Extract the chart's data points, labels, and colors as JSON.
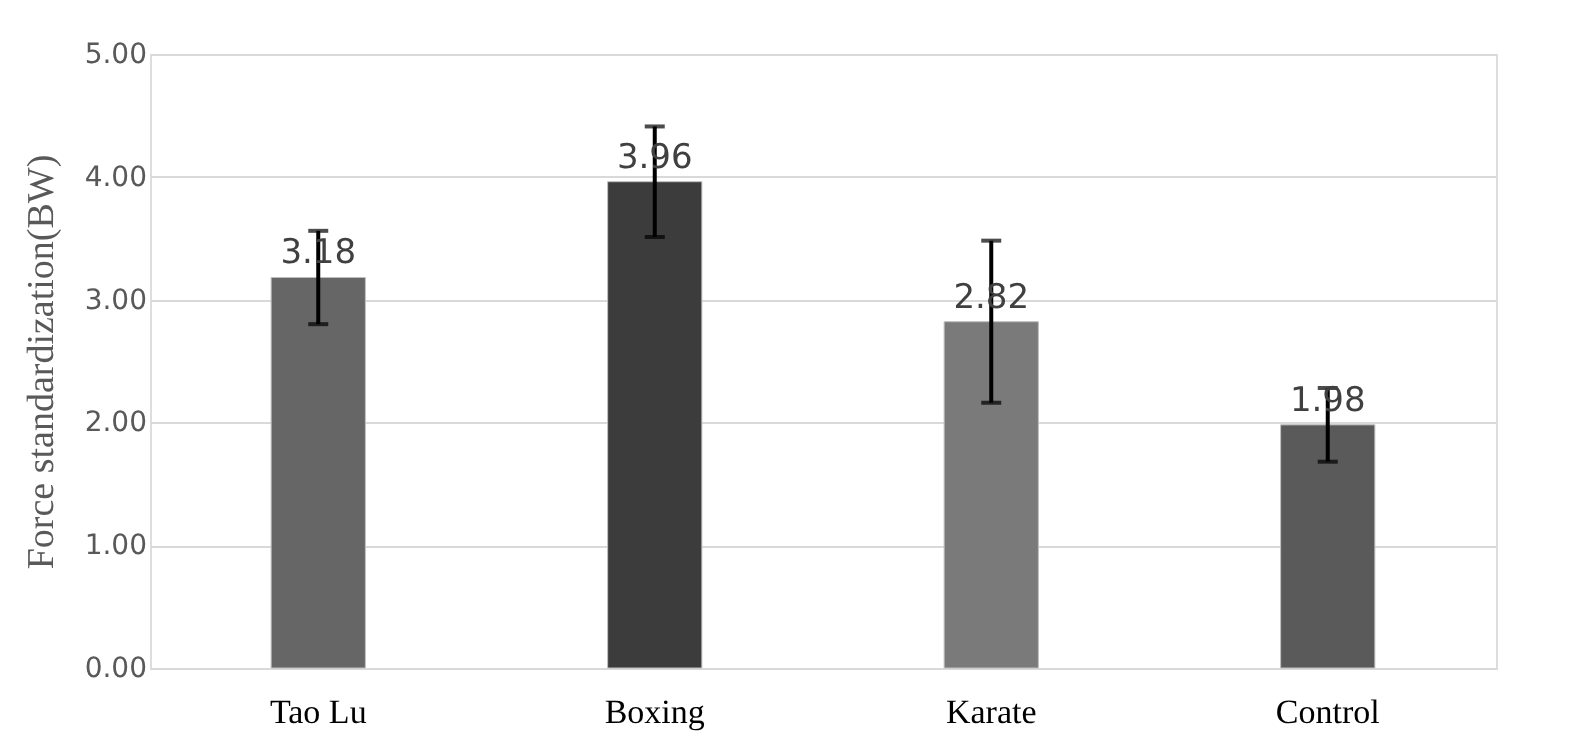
{
  "chart_data": {
    "type": "bar",
    "ylabel": "Force standardization(BW)",
    "categories": [
      "Tao Lu",
      "Boxing",
      "Karate",
      "Control"
    ],
    "values": [
      3.18,
      3.96,
      2.82,
      1.98
    ],
    "errors": [
      0.38,
      0.45,
      0.66,
      0.3
    ],
    "colors": [
      "#666666",
      "#3c3c3c",
      "#7a7a7a",
      "#5a5a5a"
    ],
    "ylim": [
      0,
      5
    ],
    "yticks": [
      {
        "value": 0,
        "label": "0.00"
      },
      {
        "value": 1,
        "label": "1.00"
      },
      {
        "value": 2,
        "label": "2.00"
      },
      {
        "value": 3,
        "label": "3.00"
      },
      {
        "value": 4,
        "label": "4.00"
      },
      {
        "value": 5,
        "label": "5.00"
      }
    ],
    "grid": "y",
    "data_labels": true
  }
}
